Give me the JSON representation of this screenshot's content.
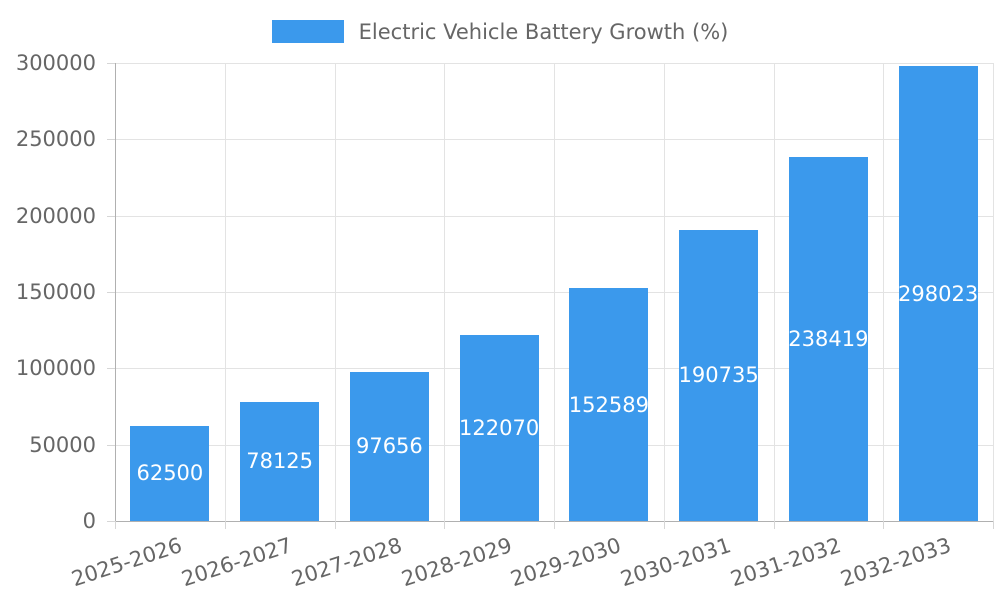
{
  "legend": {
    "label": "Electric Vehicle Battery Growth (%)"
  },
  "chart_data": {
    "type": "bar",
    "title": "Electric Vehicle Battery Growth (%)",
    "categories": [
      "2025-2026",
      "2026-2027",
      "2027-2028",
      "2028-2029",
      "2029-2030",
      "2030-2031",
      "2031-2032",
      "2032-2033"
    ],
    "values": [
      62500,
      78125,
      97656,
      122070,
      152589,
      190735,
      238419,
      298023
    ],
    "value_labels": [
      "62500",
      "78125",
      "97656",
      "122070",
      "152589",
      "190735",
      "238419",
      "298023"
    ],
    "xlabel": "",
    "ylabel": "",
    "ylim": [
      0,
      300000
    ],
    "yticks": [
      0,
      50000,
      100000,
      150000,
      200000,
      250000,
      300000
    ],
    "ytick_labels": [
      "0",
      "50000",
      "100000",
      "150000",
      "200000",
      "250000",
      "300000"
    ],
    "grid": true,
    "legend_position": "top",
    "value_label_position": "center-inside-bar",
    "x_label_rotation_deg": -18
  },
  "colors": {
    "background": "#ffffff",
    "bar": "#3b99ec",
    "bar_value_label": "#ffffff",
    "text": "#666666",
    "axis_line": "#b0b0b0",
    "gridline": "#e3e3e3",
    "tick": "#d6d6d6"
  }
}
